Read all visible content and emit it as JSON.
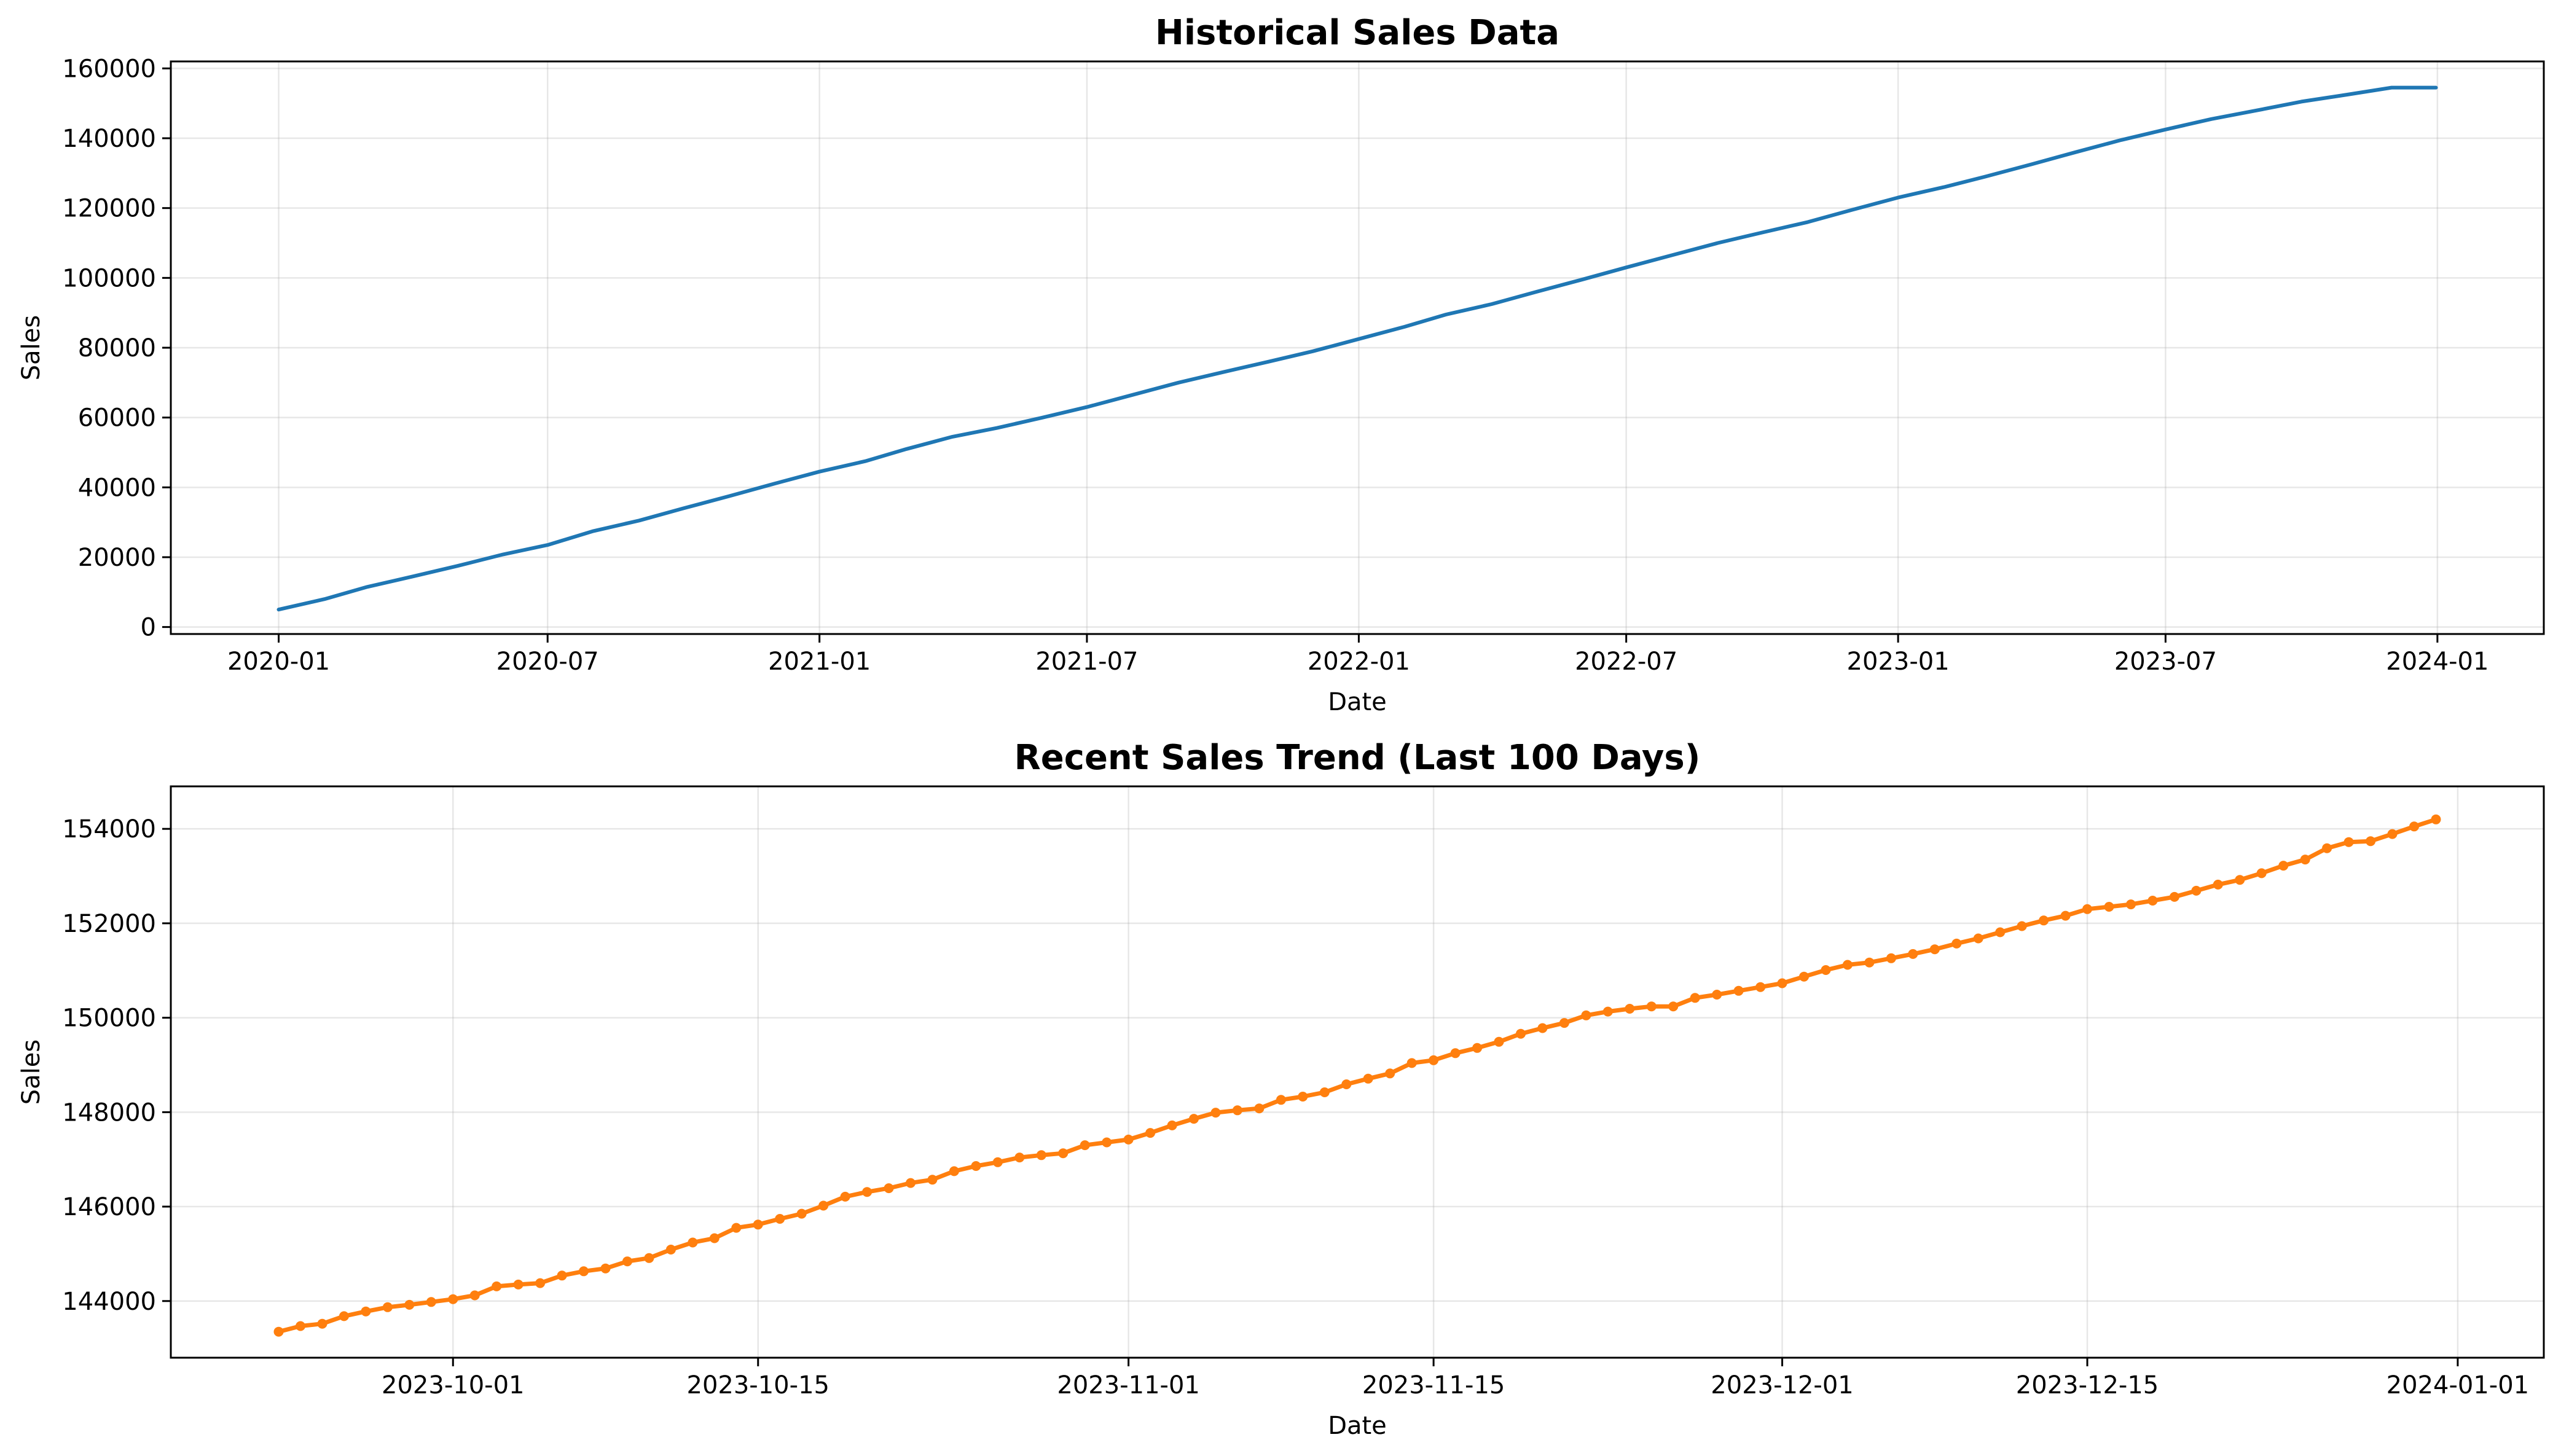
{
  "chart_data": [
    {
      "type": "line",
      "title": "Historical Sales Data",
      "xlabel": "Date",
      "ylabel": "Sales",
      "x_range": [
        "2020-01-01",
        "2023-12-31"
      ],
      "ylim": [
        -2000,
        162000
      ],
      "grid": true,
      "x_ticks": [
        "2020-01",
        "2020-07",
        "2021-01",
        "2021-07",
        "2022-01",
        "2022-07",
        "2023-01",
        "2023-07",
        "2024-01"
      ],
      "y_ticks": [
        0,
        20000,
        40000,
        60000,
        80000,
        100000,
        120000,
        140000,
        160000
      ],
      "color": "#1f77b4",
      "series": [
        {
          "x": [
            "2020-01-01",
            "2020-02-01",
            "2020-03-01",
            "2020-04-01",
            "2020-05-01",
            "2020-06-01",
            "2020-07-01",
            "2020-08-01",
            "2020-09-01",
            "2020-10-01",
            "2020-11-01",
            "2020-12-01",
            "2021-01-01",
            "2021-02-01",
            "2021-03-01",
            "2021-04-01",
            "2021-05-01",
            "2021-06-01",
            "2021-07-01",
            "2021-08-01",
            "2021-09-01",
            "2021-10-01",
            "2021-11-01",
            "2021-12-01",
            "2022-01-01",
            "2022-02-01",
            "2022-03-01",
            "2022-04-01",
            "2022-05-01",
            "2022-06-01",
            "2022-07-01",
            "2022-08-01",
            "2022-09-01",
            "2022-10-01",
            "2022-11-01",
            "2022-12-01",
            "2023-01-01",
            "2023-02-01",
            "2023-03-01",
            "2023-04-01",
            "2023-05-01",
            "2023-06-01",
            "2023-07-01",
            "2023-08-01",
            "2023-09-01",
            "2023-10-01",
            "2023-11-01",
            "2023-12-01",
            "2023-12-31"
          ],
          "y": [
            5000,
            8000,
            11500,
            14500,
            17500,
            20800,
            23500,
            27500,
            30500,
            34000,
            37500,
            41000,
            44500,
            47500,
            51000,
            54500,
            57000,
            60000,
            63000,
            66500,
            70000,
            73000,
            76000,
            79000,
            82500,
            86000,
            89500,
            92500,
            96000,
            99500,
            103000,
            106500,
            110000,
            113000,
            116000,
            119500,
            123000,
            126000,
            129000,
            132500,
            136000,
            139500,
            142500,
            145500,
            148000,
            150500,
            152500,
            154500,
            154500
          ]
        }
      ]
    },
    {
      "type": "line",
      "title": "Recent Sales Trend (Last 100 Days)",
      "xlabel": "Date",
      "ylabel": "Sales",
      "x_range": [
        "2023-09-23",
        "2023-12-31"
      ],
      "ylim": [
        142800,
        154900
      ],
      "grid": true,
      "x_ticks": [
        "2023-10-01",
        "2023-10-15",
        "2023-11-01",
        "2023-11-15",
        "2023-12-01",
        "2023-12-15",
        "2024-01-01"
      ],
      "y_ticks": [
        144000,
        146000,
        148000,
        150000,
        152000,
        154000
      ],
      "color": "#ff7f0e",
      "marker": "dot",
      "series": [
        {
          "x_start": "2023-09-23",
          "y": [
            143350,
            143470,
            143520,
            143680,
            143780,
            143870,
            143920,
            143980,
            144040,
            144120,
            144310,
            144350,
            144380,
            144540,
            144630,
            144690,
            144840,
            144910,
            145090,
            145240,
            145330,
            145550,
            145620,
            145740,
            145850,
            146020,
            146210,
            146310,
            146390,
            146500,
            146570,
            146750,
            146860,
            146940,
            147040,
            147090,
            147130,
            147300,
            147360,
            147420,
            147560,
            147720,
            147860,
            147990,
            148040,
            148080,
            148260,
            148330,
            148420,
            148590,
            148710,
            148820,
            149040,
            149100,
            149250,
            149360,
            149490,
            149660,
            149780,
            149890,
            150050,
            150130,
            150190,
            150240,
            150240,
            150420,
            150490,
            150570,
            150650,
            150730,
            150870,
            151010,
            151120,
            151170,
            151260,
            151350,
            151450,
            151570,
            151680,
            151810,
            151940,
            152060,
            152160,
            152300,
            152350,
            152400,
            152480,
            152560,
            152690,
            152820,
            152920,
            153060,
            153220,
            153350,
            153590,
            153720,
            153740,
            153890,
            154050,
            154200
          ]
        }
      ]
    }
  ]
}
